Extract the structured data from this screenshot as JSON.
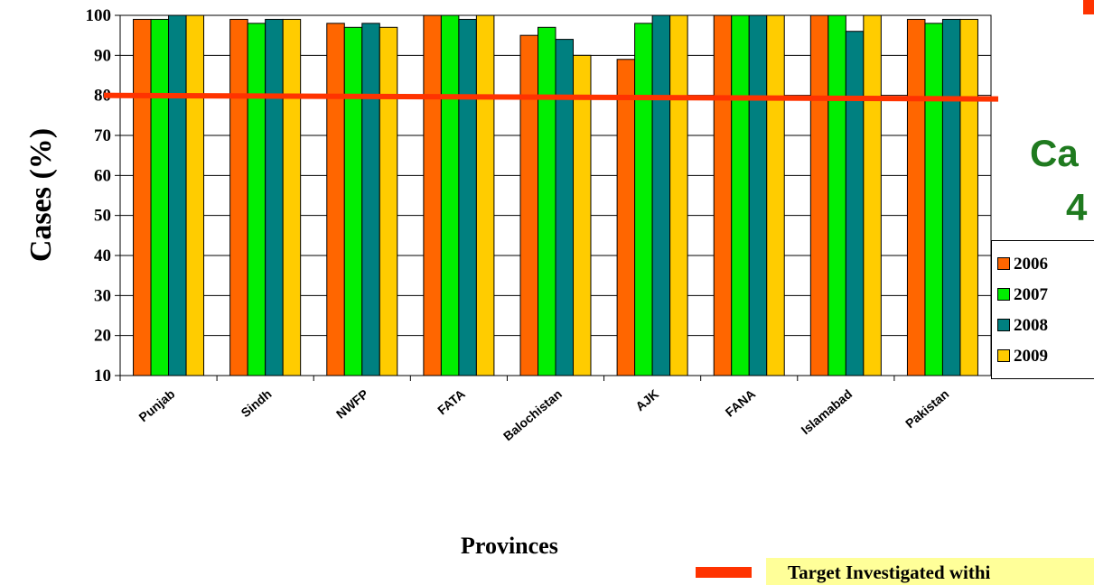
{
  "chart_data": {
    "type": "bar",
    "categories": [
      "Punjab",
      "Sindh",
      "NWFP",
      "FATA",
      "Balochistan",
      "AJK",
      "FANA",
      "Islamabad",
      "Pakistan"
    ],
    "series": [
      {
        "name": "2006",
        "color": "#ff6600",
        "values": [
          99,
          99,
          98,
          100,
          95,
          89,
          100,
          100,
          99
        ]
      },
      {
        "name": "2007",
        "color": "#00ee00",
        "values": [
          99,
          98,
          97,
          100,
          97,
          98,
          100,
          100,
          98
        ]
      },
      {
        "name": "2008",
        "color": "#008080",
        "values": [
          100,
          99,
          98,
          99,
          94,
          100,
          100,
          96,
          99
        ]
      },
      {
        "name": "2009",
        "color": "#ffcc00",
        "values": [
          100,
          99,
          97,
          100,
          90,
          100,
          100,
          100,
          99
        ]
      }
    ],
    "ylabel": "Cases (%)",
    "xlabel": "Provinces",
    "ylim": [
      10,
      100
    ],
    "yticks": [
      10,
      20,
      30,
      40,
      50,
      60,
      70,
      80,
      90,
      100
    ],
    "grid": true,
    "target_line": {
      "value": 80,
      "color": "#ff3300"
    },
    "legend_position": "right"
  },
  "side_text": {
    "line1": "Ca",
    "line2": "4"
  },
  "note": {
    "text": "Target Investigated withi"
  }
}
